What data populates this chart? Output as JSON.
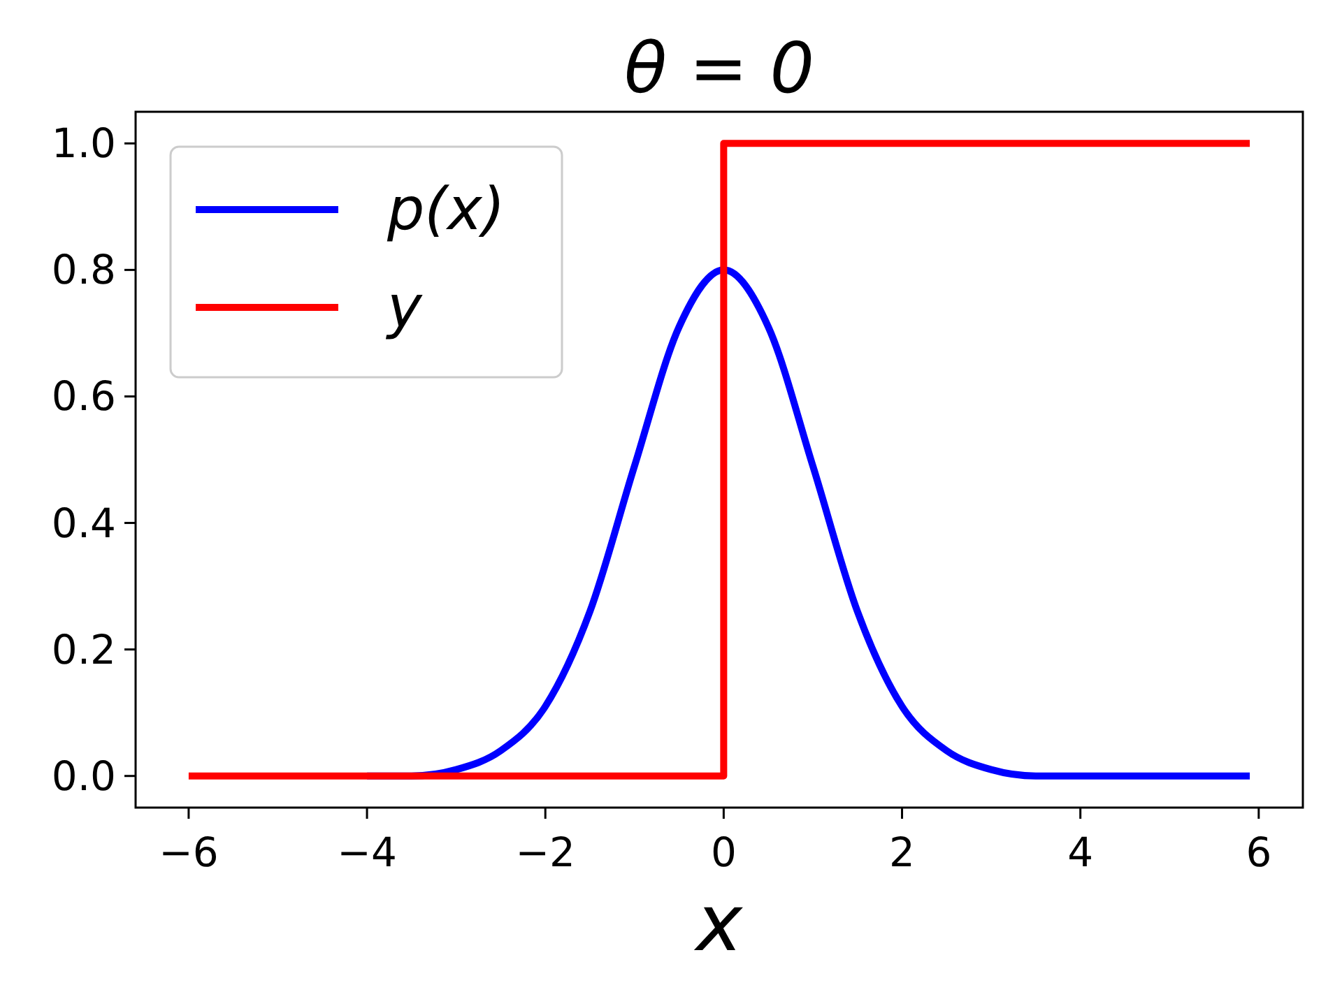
{
  "chart_data": {
    "type": "line",
    "title": "θ = 0",
    "xlabel": "x",
    "xlim": [
      -6.595,
      6.495
    ],
    "ylim": [
      -0.05,
      1.05
    ],
    "xticks": [
      {
        "value": -6,
        "label": "−6"
      },
      {
        "value": -4,
        "label": "−4"
      },
      {
        "value": -2,
        "label": "−2"
      },
      0,
      2,
      4,
      6
    ],
    "yticks": [
      {
        "value": 0,
        "label": "0.0"
      },
      {
        "value": 0.2,
        "label": "0.2"
      },
      {
        "value": 0.4,
        "label": "0.4"
      },
      {
        "value": 0.6,
        "label": "0.6"
      },
      {
        "value": 0.8,
        "label": "0.8"
      },
      {
        "value": 1,
        "label": "1.0"
      }
    ],
    "grid": false,
    "legend": "top left",
    "line_style": "solid",
    "marker": "none",
    "series": [
      {
        "name": "p(x)",
        "color": "#0000ff",
        "x": [
          -4,
          -3.5,
          -3,
          -2.5,
          -2,
          -1.5,
          -1,
          -0.5,
          0,
          0.5,
          1,
          1.5,
          2,
          2.5,
          3,
          3.5,
          4,
          5,
          5.9
        ],
        "values": [
          0,
          0,
          0.01,
          0.04,
          0.11,
          0.26,
          0.49,
          0.71,
          0.8,
          0.71,
          0.49,
          0.26,
          0.11,
          0.04,
          0.01,
          0,
          0,
          0,
          0
        ]
      },
      {
        "name": "y",
        "color": "#ff0000",
        "x": [
          -6,
          0,
          0,
          5.9
        ],
        "values": [
          0,
          0,
          1,
          1
        ]
      }
    ]
  }
}
